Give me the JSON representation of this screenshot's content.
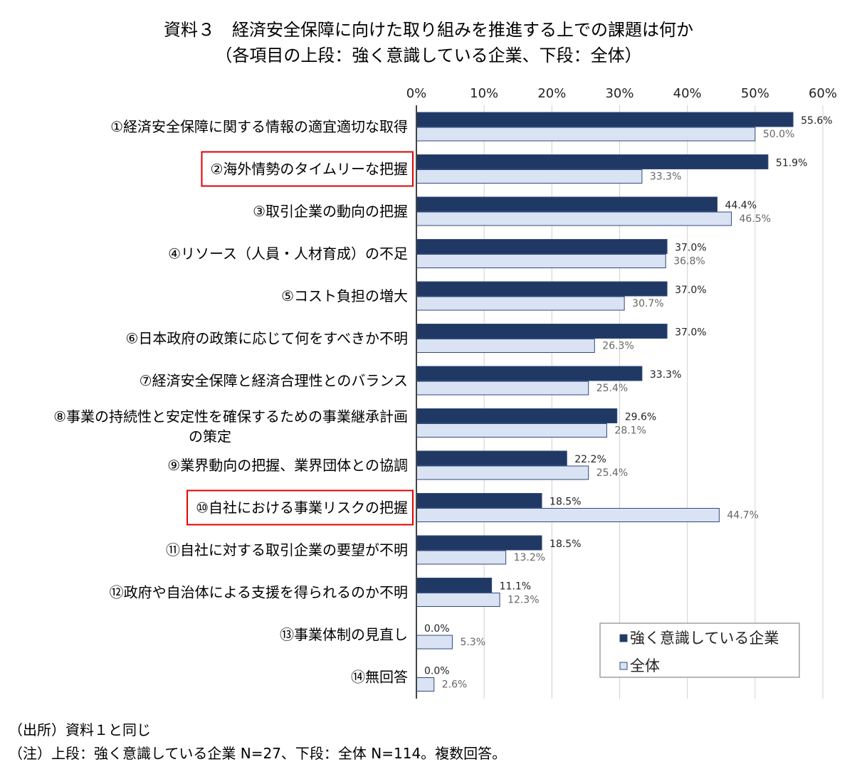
{
  "chart_data": {
    "type": "bar",
    "orientation": "horizontal",
    "title": "資料３　経済安全保障に向けた取り組みを推進する上での課題は何か",
    "subtitle": "（各項目の上段：強く意識している企業、下段：全体）",
    "categories": [
      "①経済安全保障に関する情報の適宜適切な取得",
      "②海外情勢のタイムリーな把握",
      "③取引企業の動向の把握",
      "④リソース（人員・人材育成）の不足",
      "⑤コスト負担の増大",
      "⑥日本政府の政策に応じて何をすべきか不明",
      "⑦経済安全保障と経済合理性とのバランス",
      "⑧事業の持続性と安定性を確保するための事業継承計画の策定",
      "⑨業界動向の把握、業界団体との協調",
      "⑩自社における事業リスクの把握",
      "⑪自社に対する取引企業の要望が不明",
      "⑫政府や自治体による支援を得られるのか不明",
      "⑬事業体制の見直し",
      "⑭無回答"
    ],
    "category_lines": {
      "7": [
        "⑧事業の持続性と安定性を確保するための事業継承計画",
        "の策定"
      ]
    },
    "highlighted_categories": [
      1,
      9
    ],
    "series": [
      {
        "name": "強く意識している企業",
        "color": "#203864",
        "values": [
          55.6,
          51.9,
          44.4,
          37.0,
          37.0,
          37.0,
          33.3,
          29.6,
          22.2,
          18.5,
          18.5,
          11.1,
          0.0,
          0.0
        ],
        "labels": [
          "55.6%",
          "51.9%",
          "44.4%",
          "37.0%",
          "37.0%",
          "37.0%",
          "33.3%",
          "29.6%",
          "22.2%",
          "18.5%",
          "18.5%",
          "11.1%",
          "0.0%",
          "0.0%"
        ]
      },
      {
        "name": "全体",
        "color": "#dae3f3",
        "values": [
          50.0,
          33.3,
          46.5,
          36.8,
          30.7,
          26.3,
          25.4,
          28.1,
          25.4,
          44.7,
          13.2,
          12.3,
          5.3,
          2.6
        ],
        "labels": [
          "50.0%",
          "33.3%",
          "46.5%",
          "36.8%",
          "30.7%",
          "26.3%",
          "25.4%",
          "28.1%",
          "25.4%",
          "44.7%",
          "13.2%",
          "12.3%",
          "5.3%",
          "2.6%"
        ]
      }
    ],
    "xlim": [
      0,
      60
    ],
    "xticks": [
      0,
      10,
      20,
      30,
      40,
      50,
      60
    ],
    "xtick_labels": [
      "0%",
      "10%",
      "20%",
      "30%",
      "40%",
      "50%",
      "60%"
    ],
    "x_axis_position": "top",
    "grid": true,
    "legend_position": "bottom-right",
    "highlight_color": "#e00000"
  },
  "notes": {
    "source": "（出所）資料１と同じ",
    "note": "（注）上段：強く意識している企業 N=27、下段：全体 N=114。複数回答。"
  }
}
